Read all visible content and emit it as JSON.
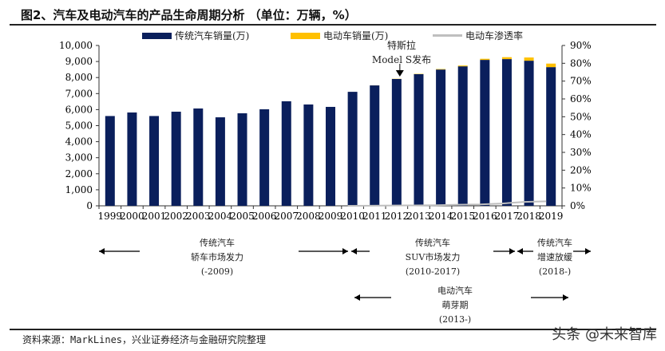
{
  "title": "图2、汽车及电动汽车的产品生命周期分析 （单位：万辆，%）",
  "chart_data": {
    "type": "bar",
    "stacked": true,
    "categories": [
      "1999",
      "2000",
      "2001",
      "2002",
      "2003",
      "2004",
      "2005",
      "2006",
      "2007",
      "2008",
      "2009",
      "2010",
      "2011",
      "2012",
      "2013",
      "2014",
      "2015",
      "2016",
      "2017",
      "2018",
      "2019"
    ],
    "series": [
      {
        "name": "传统汽车销量(万)",
        "color": "#0a1f5c",
        "axis": "left",
        "values": [
          5600,
          5820,
          5600,
          5870,
          6070,
          5520,
          5770,
          6020,
          6520,
          6320,
          6170,
          7110,
          7510,
          7910,
          8210,
          8500,
          8700,
          9100,
          9150,
          9050,
          8650
        ]
      },
      {
        "name": "电动车销量(万)",
        "color": "#ffc000",
        "axis": "left",
        "values": [
          0,
          0,
          0,
          0,
          0,
          0,
          0,
          0,
          0,
          0,
          0,
          1,
          4,
          13,
          20,
          30,
          50,
          70,
          120,
          200,
          220
        ]
      },
      {
        "name": "电动车渗透率",
        "color": "#bfbfbf",
        "type": "line",
        "axis": "right",
        "values": [
          null,
          null,
          null,
          null,
          null,
          null,
          null,
          null,
          null,
          null,
          null,
          0.01,
          0.05,
          0.15,
          0.25,
          0.35,
          0.6,
          0.8,
          1.3,
          2.2,
          2.5
        ]
      }
    ],
    "ylim": [
      0,
      10000
    ],
    "yticks": [
      "0",
      "1,000",
      "2,000",
      "3,000",
      "4,000",
      "5,000",
      "6,000",
      "7,000",
      "8,000",
      "9,000",
      "10,000"
    ],
    "y2lim": [
      0,
      90
    ],
    "y2ticks": [
      "0%",
      "10%",
      "20%",
      "30%",
      "40%",
      "50%",
      "60%",
      "70%",
      "80%",
      "90%"
    ],
    "legend": "top",
    "grid": false,
    "annotation": {
      "line1": "特斯拉",
      "line2": "Model S发布",
      "at": "2012"
    }
  },
  "phases": [
    {
      "l1": "传统汽车",
      "l2": "轿车市场发力",
      "l3": "(-2009)"
    },
    {
      "l1": "传统汽车",
      "l2": "SUV市场发力",
      "l3": "(2010-2017)"
    },
    {
      "l1": "传统汽车",
      "l2": "增速放缓",
      "l3": "(2018-)"
    },
    {
      "l1": "电动汽车",
      "l2": "萌芽期",
      "l3": "(2013-)"
    }
  ],
  "source": "资料来源：MarkLines，兴业证券经济与金融研究院整理",
  "watermark": "头条 @未来智库"
}
